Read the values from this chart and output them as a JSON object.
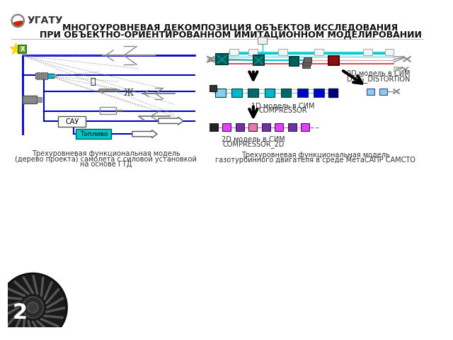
{
  "title_line1": "МНОГОУРОВНЕВАЯ ДЕКОМПОЗИЦИЯ ОБЪЕКТОВ ИССЛЕДОВАНИЯ",
  "title_line2": "ПРИ ОБЪЕКТНО-ОРИЕНТИРОВАННОМ ИМИТАЦИОННОМ МОДЕЛИРОВАНИИ",
  "ugatu_text": "УГАТУ",
  "bg_color": "#ffffff",
  "slide_number": "2",
  "left_caption_line1": "Трехуровневая функциональная модель",
  "left_caption_line2": "(дерево проекта) самолета с силовой установкой",
  "left_caption_line3": "на основе ГТД",
  "right_caption_line1": "Трехуровневая функциональная модель",
  "right_caption_line2": "газотурбинного двигателя в среде МетаСАПР САМСТО",
  "label_0d_line1": "0D модель в СИМ",
  "label_0d_line2": "DVIG_DISTORTION",
  "label_1d_line1": "1D модель в СИМ",
  "label_1d_line2": "COMPRESSOR",
  "label_2d_line1": "2D модель в СИМ",
  "label_2d_line2": "COMPRESSOR_2D",
  "color_cyan": "#00c8d0",
  "color_teal": "#006060",
  "color_blue": "#0000cc",
  "color_darkblue": "#000080",
  "color_purple": "#7030a0",
  "color_magenta": "#e040fb",
  "color_darkred": "#c00000",
  "color_green": "#70ad47",
  "color_black": "#000000",
  "color_gray": "#808080",
  "color_lightgray": "#d3d3d3",
  "color_white": "#ffffff",
  "color_yellow_green": "#9acd32",
  "color_darkgray": "#404040"
}
